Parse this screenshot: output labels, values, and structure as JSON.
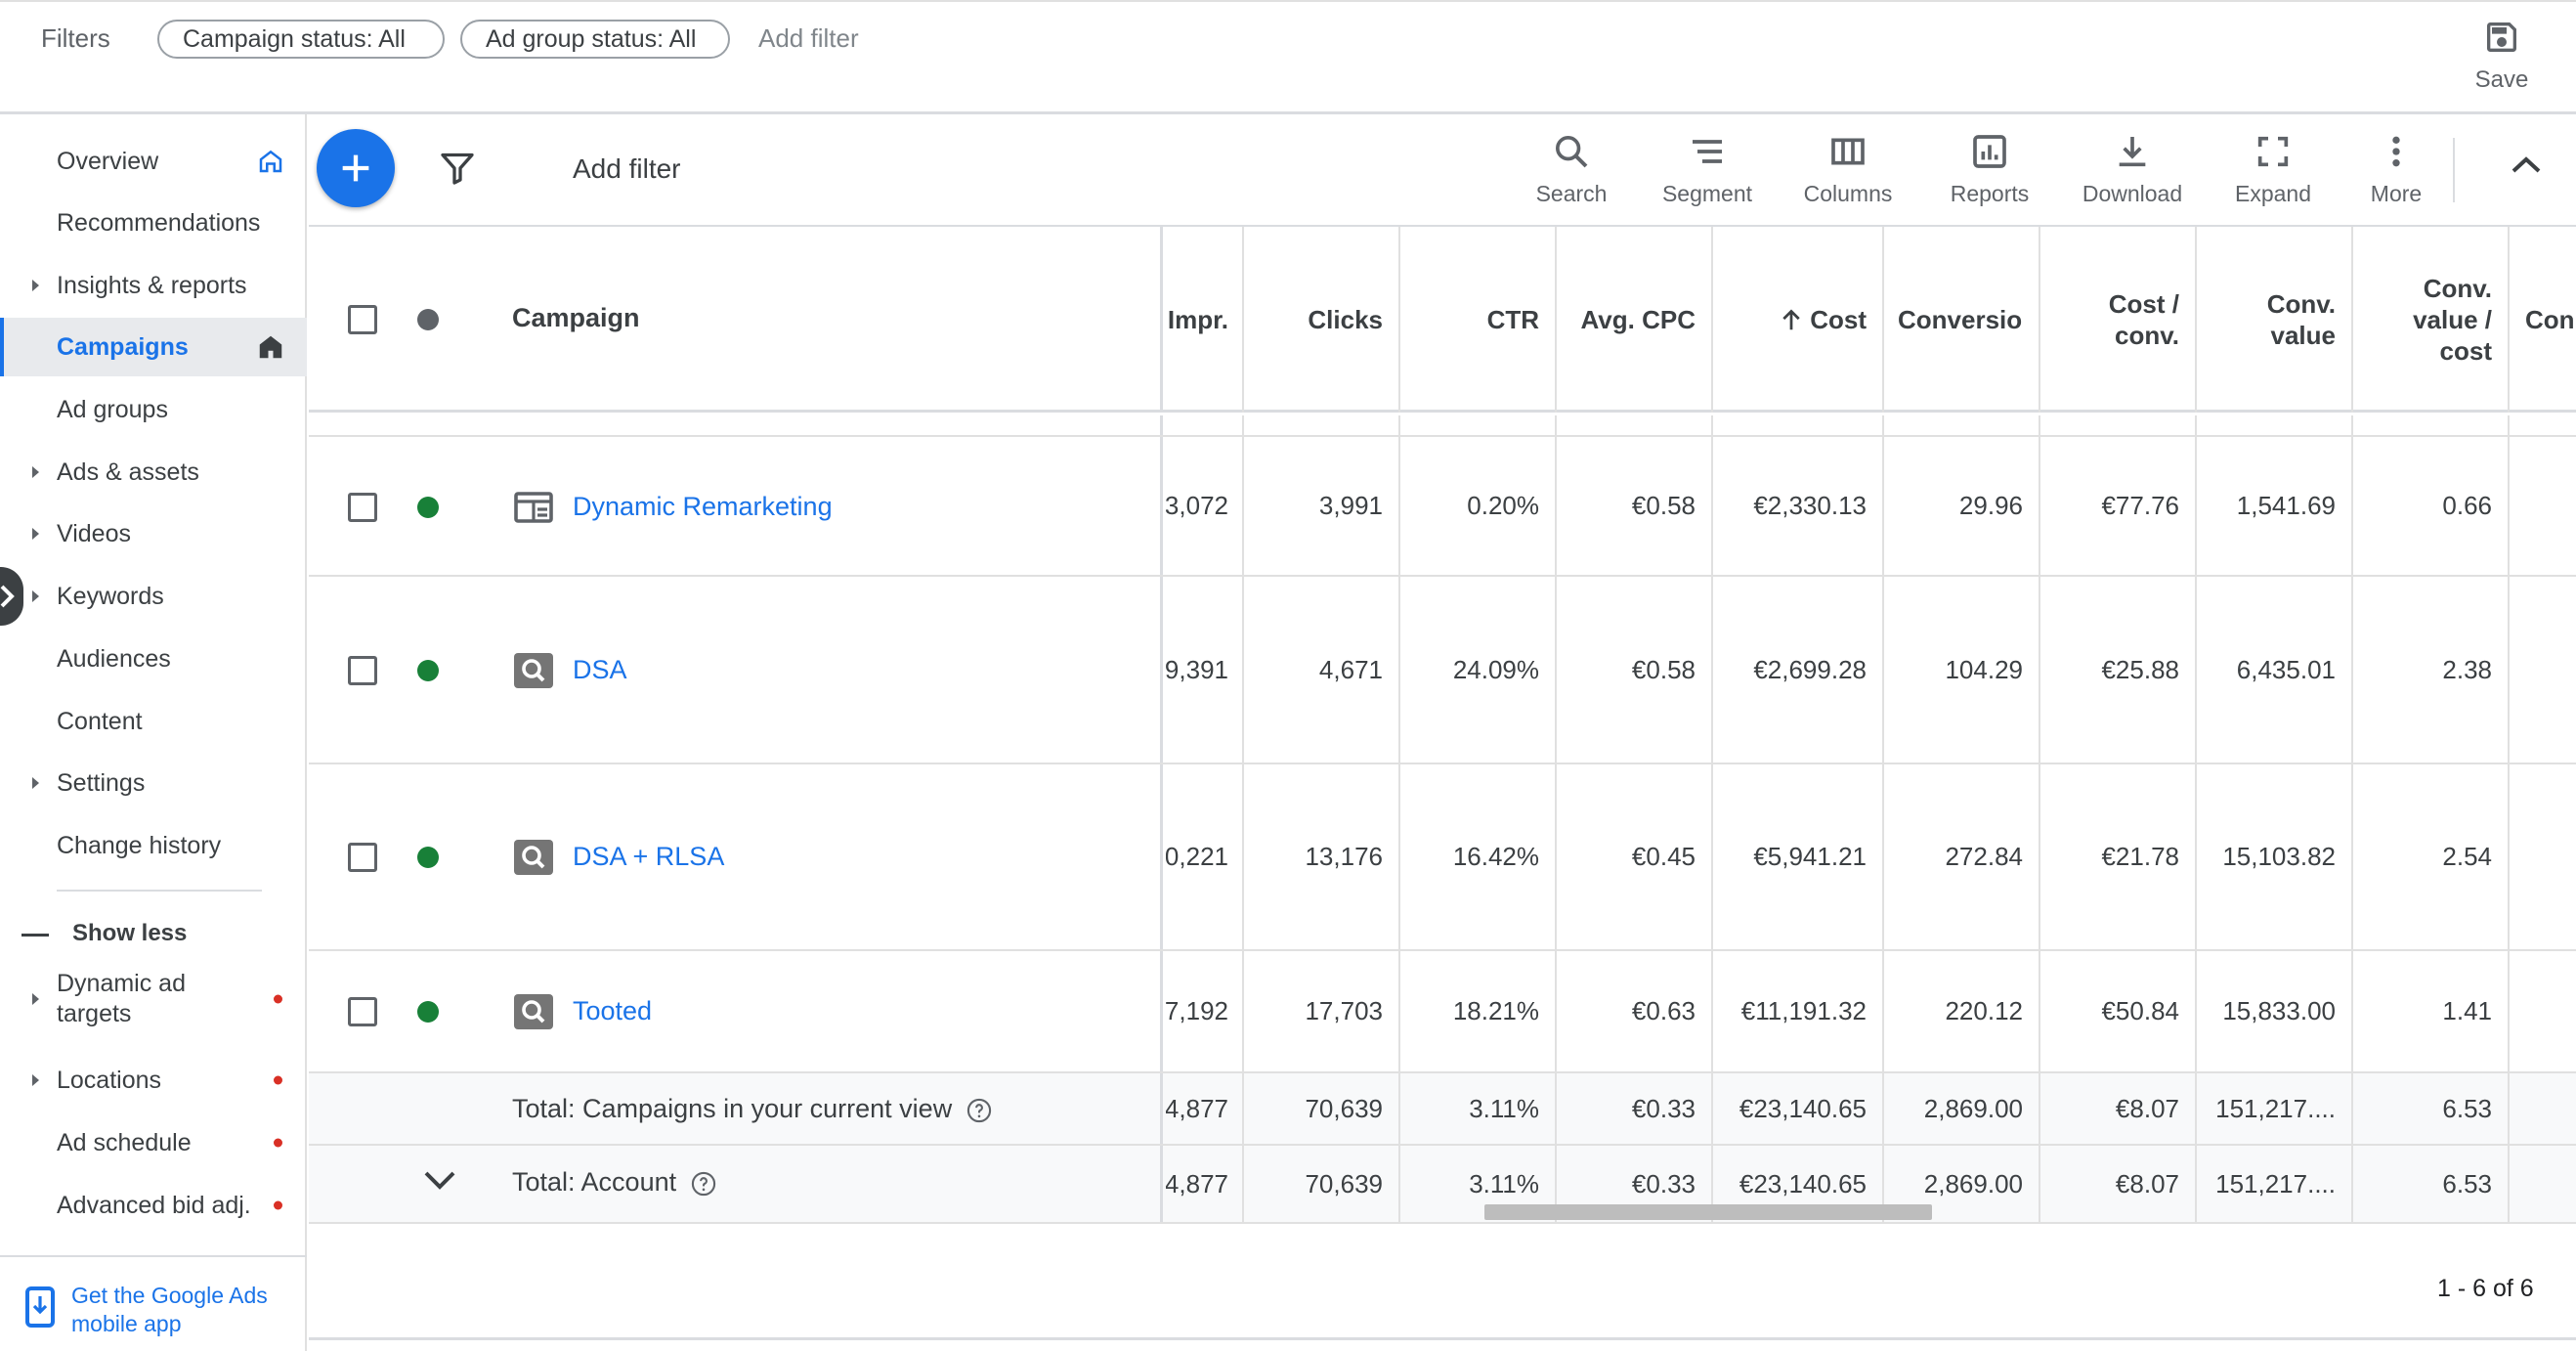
{
  "filters": {
    "label": "Filters",
    "chips": [
      "Campaign status: All",
      "Ad group status: All"
    ],
    "add_filter": "Add filter",
    "save_label": "Save"
  },
  "sidebar": {
    "items": [
      {
        "label": "Overview"
      },
      {
        "label": "Recommendations"
      },
      {
        "label": "Insights & reports"
      },
      {
        "label": "Campaigns"
      },
      {
        "label": "Ad groups"
      },
      {
        "label": "Ads & assets"
      },
      {
        "label": "Videos"
      },
      {
        "label": "Keywords"
      },
      {
        "label": "Audiences"
      },
      {
        "label": "Content"
      },
      {
        "label": "Settings"
      },
      {
        "label": "Change history"
      }
    ],
    "show_less": "Show less",
    "extra_items": [
      {
        "label": "Dynamic ad targets"
      },
      {
        "label": "Locations"
      },
      {
        "label": "Ad schedule"
      },
      {
        "label": "Advanced bid adj."
      }
    ],
    "mobile_app": "Get the Google Ads mobile app"
  },
  "toolbar": {
    "add_filter": "Add filter",
    "buttons": [
      "Search",
      "Segment",
      "Columns",
      "Reports",
      "Download",
      "Expand",
      "More"
    ]
  },
  "table": {
    "headers": {
      "campaign": "Campaign",
      "impr": "Impr.",
      "clicks": "Clicks",
      "ctr": "CTR",
      "avg_cpc": "Avg. CPC",
      "cost": "Cost",
      "conversions": "Conversio",
      "cost_conv": "Cost / conv.",
      "conv_value": "Conv. value",
      "conv_value_cost": "Conv. value / cost",
      "extra": "Con"
    },
    "rows": [
      {
        "name": "Dynamic Remarketing",
        "impr": "3,072",
        "clicks": "3,991",
        "ctr": "0.20%",
        "avg_cpc": "€0.58",
        "cost": "€2,330.13",
        "conversions": "29.96",
        "cost_conv": "€77.76",
        "conv_value": "1,541.69",
        "conv_value_cost": "0.66"
      },
      {
        "name": "DSA",
        "impr": "9,391",
        "clicks": "4,671",
        "ctr": "24.09%",
        "avg_cpc": "€0.58",
        "cost": "€2,699.28",
        "conversions": "104.29",
        "cost_conv": "€25.88",
        "conv_value": "6,435.01",
        "conv_value_cost": "2.38"
      },
      {
        "name": "DSA + RLSA",
        "impr": "0,221",
        "clicks": "13,176",
        "ctr": "16.42%",
        "avg_cpc": "€0.45",
        "cost": "€5,941.21",
        "conversions": "272.84",
        "cost_conv": "€21.78",
        "conv_value": "15,103.82",
        "conv_value_cost": "2.54"
      },
      {
        "name": "Tooted",
        "impr": "7,192",
        "clicks": "17,703",
        "ctr": "18.21%",
        "avg_cpc": "€0.63",
        "cost": "€11,191.32",
        "conversions": "220.12",
        "cost_conv": "€50.84",
        "conv_value": "15,833.00",
        "conv_value_cost": "1.41"
      }
    ],
    "totals": [
      {
        "label": "Total: Campaigns in your current view",
        "impr": "4,877",
        "clicks": "70,639",
        "ctr": "3.11%",
        "avg_cpc": "€0.33",
        "cost": "€23,140.65",
        "conversions": "2,869.00",
        "cost_conv": "€8.07",
        "conv_value": "151,217....",
        "conv_value_cost": "6.53"
      },
      {
        "label": "Total: Account",
        "impr": "4,877",
        "clicks": "70,639",
        "ctr": "3.11%",
        "avg_cpc": "€0.33",
        "cost": "€23,140.65",
        "conversions": "2,869.00",
        "cost_conv": "€8.07",
        "conv_value": "151,217....",
        "conv_value_cost": "6.53"
      }
    ],
    "pagination": "1 - 6 of 6"
  },
  "colors": {
    "accent": "#1a73e8",
    "enabled": "#188038",
    "alert": "#d93025"
  }
}
